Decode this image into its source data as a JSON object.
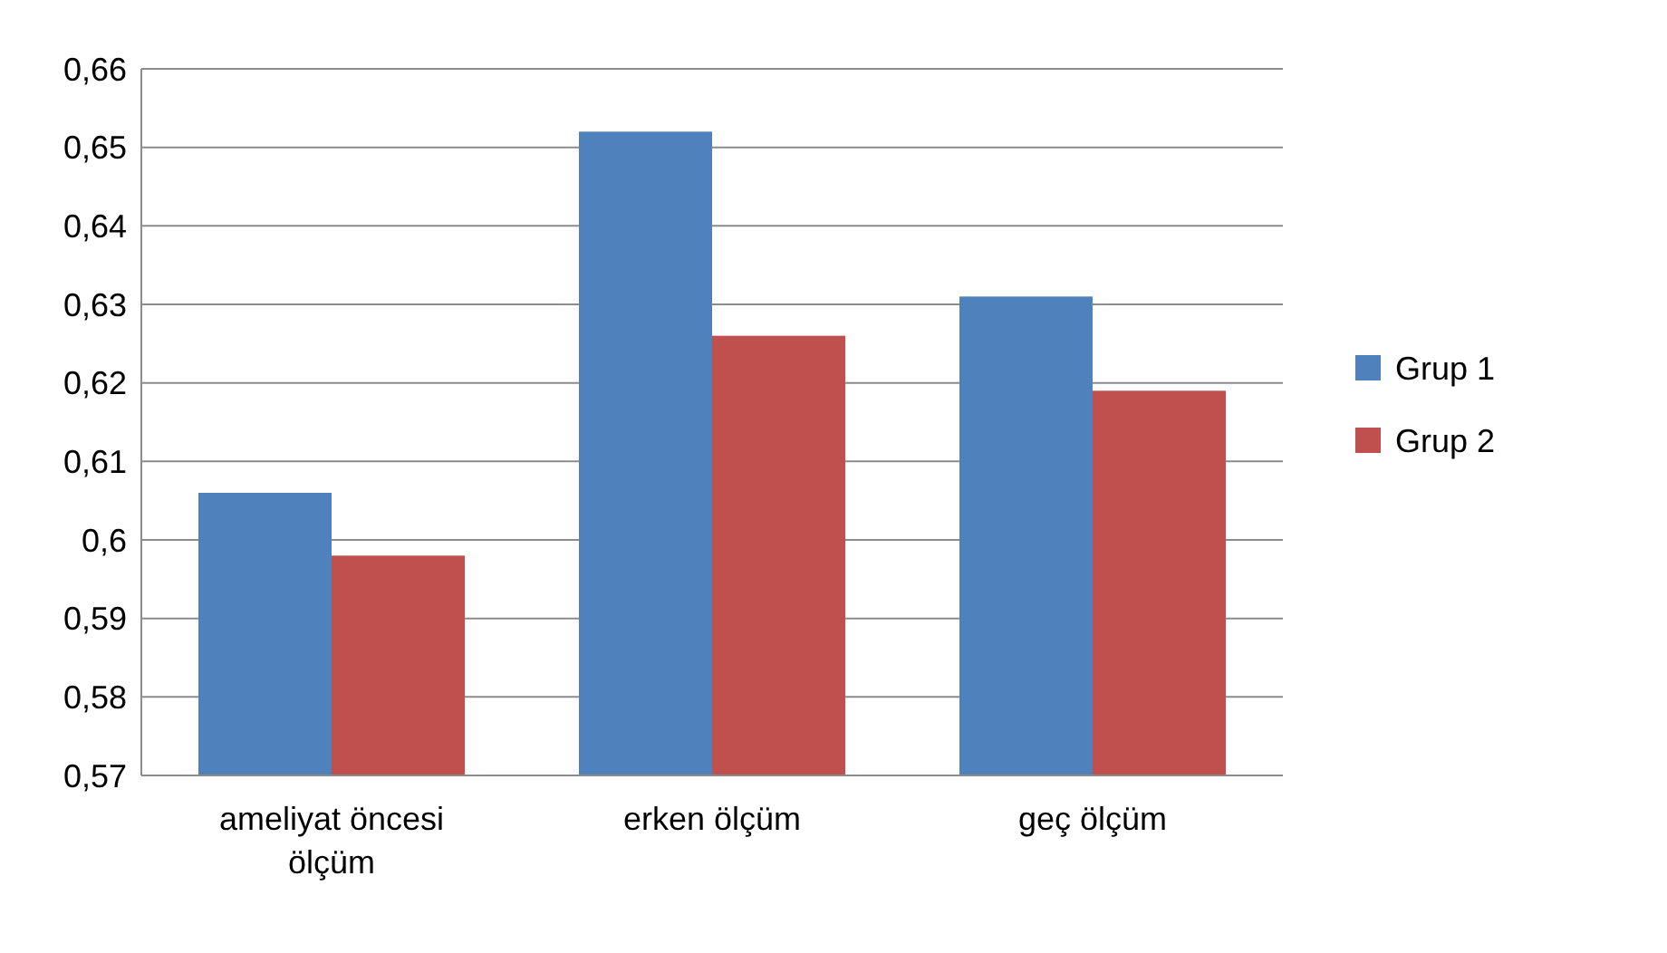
{
  "chart_data": {
    "type": "bar",
    "categories": [
      "ameliyat öncesi ölçüm",
      "erken ölçüm",
      "geç ölçüm"
    ],
    "series": [
      {
        "name": "Grup 1",
        "color": "#4f81bd",
        "values": [
          0.606,
          0.652,
          0.631
        ]
      },
      {
        "name": "Grup 2",
        "color": "#c0504d",
        "values": [
          0.598,
          0.626,
          0.619
        ]
      }
    ],
    "ylim": [
      0.57,
      0.66
    ],
    "yticks": [
      {
        "value": 0.57,
        "label": "0,57"
      },
      {
        "value": 0.58,
        "label": "0,58"
      },
      {
        "value": 0.59,
        "label": "0,59"
      },
      {
        "value": 0.6,
        "label": "0,6"
      },
      {
        "value": 0.61,
        "label": "0,61"
      },
      {
        "value": 0.62,
        "label": "0,62"
      },
      {
        "value": 0.63,
        "label": "0,63"
      },
      {
        "value": 0.64,
        "label": "0,64"
      },
      {
        "value": 0.65,
        "label": "0,65"
      },
      {
        "value": 0.66,
        "label": "0,66"
      }
    ],
    "grid": true,
    "legend": "right"
  }
}
